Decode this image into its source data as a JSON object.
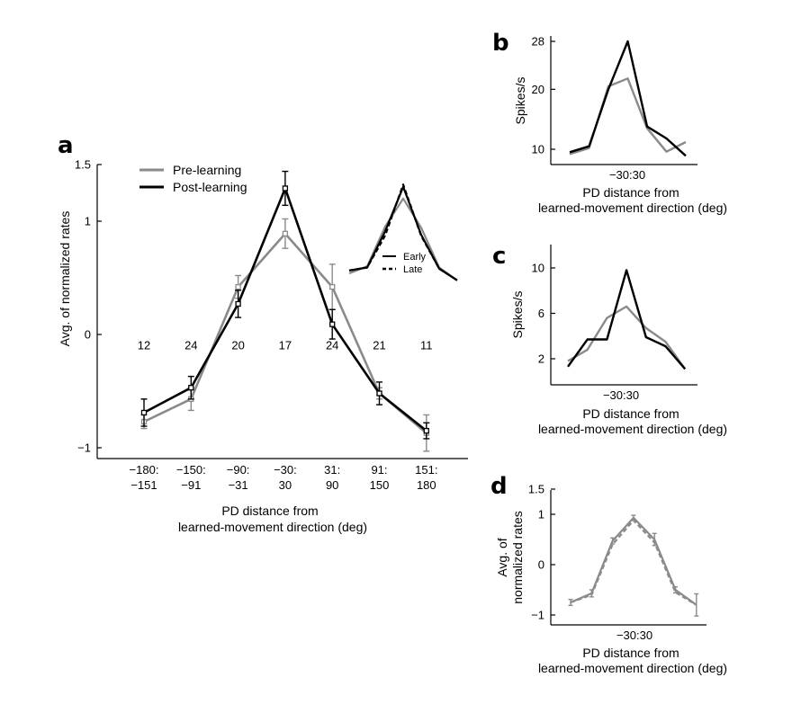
{
  "panel_labels": {
    "a": "a",
    "b": "b",
    "c": "c",
    "d": "d"
  },
  "colors": {
    "pre": "#8a8a8a",
    "post": "#000000",
    "axis": "#000000"
  },
  "chart_data": [
    {
      "panel": "a",
      "type": "line",
      "ylabel": "Avg. of normalized rates",
      "xlabel_line1": "PD distance from",
      "xlabel_line2": "learned-movement direction (deg)",
      "ylim": [
        -1.05,
        1.5
      ],
      "yticks": [
        {
          "v": 1.5,
          "label": "1.5"
        },
        {
          "v": 1,
          "label": "1"
        },
        {
          "v": 0,
          "label": "0"
        },
        {
          "v": -1,
          "label": "−1"
        }
      ],
      "categories": [
        {
          "line1": "−180:",
          "line2": "−151"
        },
        {
          "line1": "−150:",
          "line2": "−91"
        },
        {
          "line1": "−90:",
          "line2": "−31"
        },
        {
          "line1": "−30:",
          "line2": "30"
        },
        {
          "line1": "31:",
          "line2": "90"
        },
        {
          "line1": "91:",
          "line2": "150"
        },
        {
          "line1": "151:",
          "line2": "180"
        }
      ],
      "counts": [
        "12",
        "24",
        "20",
        "17",
        "24",
        "21",
        "11"
      ],
      "counts_y": -0.1,
      "legend": {
        "pre": "Pre-learning",
        "post": "Post-learning"
      },
      "series": [
        {
          "name": "Pre-learning",
          "key": "pre",
          "values": [
            -0.77,
            -0.57,
            0.42,
            0.89,
            0.42,
            -0.52,
            -0.87
          ],
          "errors": [
            0.06,
            0.1,
            0.1,
            0.13,
            0.2,
            0.05,
            0.16
          ]
        },
        {
          "name": "Post-learning",
          "key": "post",
          "values": [
            -0.69,
            -0.47,
            0.27,
            1.29,
            0.09,
            -0.52,
            -0.85
          ],
          "errors": [
            0.12,
            0.1,
            0.12,
            0.15,
            0.13,
            0.1,
            0.07
          ]
        }
      ],
      "inset": {
        "legend": {
          "early": "Early",
          "late": "Late"
        },
        "series": [
          {
            "key": "pre",
            "style": "solid",
            "values": [
              -0.6,
              -0.48,
              0.2,
              0.68,
              0.18,
              -0.5,
              -0.72
            ]
          },
          {
            "key": "post",
            "style": "solid",
            "values": [
              -0.55,
              -0.5,
              0.12,
              0.88,
              0.06,
              -0.52,
              -0.72
            ]
          },
          {
            "key": "post",
            "style": "dashed",
            "values": [
              -0.55,
              -0.5,
              0.05,
              0.92,
              0.04,
              -0.52,
              -0.72
            ]
          }
        ]
      }
    },
    {
      "panel": "b",
      "type": "line",
      "ylabel": "Spikes/s",
      "xlabel_line1": "PD distance from",
      "xlabel_line2": "learned-movement direction (deg)",
      "xtick_label": "−30:30",
      "ylim": [
        8,
        28.5
      ],
      "yticks": [
        {
          "v": 28,
          "label": "28"
        },
        {
          "v": 20,
          "label": "20"
        },
        {
          "v": 10,
          "label": "10"
        }
      ],
      "x": [
        -180,
        -150,
        -90,
        -30,
        30,
        90,
        150
      ],
      "series": [
        {
          "name": "Pre-learning",
          "key": "pre",
          "values": [
            9.2,
            10.2,
            20.5,
            21.8,
            13.5,
            9.6,
            11.2
          ]
        },
        {
          "name": "Post-learning",
          "key": "post",
          "values": [
            9.5,
            10.5,
            20,
            28,
            13.8,
            11.8,
            8.9
          ]
        }
      ]
    },
    {
      "panel": "c",
      "type": "line",
      "ylabel": "Spikes/s",
      "xlabel_line1": "PD distance from",
      "xlabel_line2": "learned-movement direction (deg)",
      "xtick_label": "−30:30",
      "ylim": [
        0.5,
        11.5
      ],
      "yticks": [
        {
          "v": 10,
          "label": "10"
        },
        {
          "v": 6,
          "label": "6"
        },
        {
          "v": 2,
          "label": "2"
        }
      ],
      "x": [
        -180,
        -150,
        -90,
        -30,
        30,
        90,
        150
      ],
      "series": [
        {
          "name": "Pre-learning",
          "key": "pre",
          "values": [
            1.8,
            2.8,
            5.6,
            6.6,
            4.7,
            3.5,
            1.1
          ]
        },
        {
          "name": "Post-learning",
          "key": "post",
          "values": [
            1.3,
            3.7,
            3.7,
            9.8,
            3.9,
            3.1,
            1.1
          ]
        }
      ]
    },
    {
      "panel": "d",
      "type": "line",
      "ylabel_line1": "Avg. of",
      "ylabel_line2": "normalized rates",
      "xlabel_line1": "PD distance from",
      "xlabel_line2": "learned-movement direction (deg)",
      "xtick_label": "−30:30",
      "ylim": [
        -1.15,
        1.5
      ],
      "yticks": [
        {
          "v": 1.5,
          "label": "1.5"
        },
        {
          "v": 1,
          "label": "1"
        },
        {
          "v": 0,
          "label": "0"
        },
        {
          "v": -1,
          "label": "−1"
        }
      ],
      "x": [
        -180,
        -150,
        -90,
        -30,
        30,
        90,
        150
      ],
      "series": [
        {
          "key": "pre",
          "style": "solid",
          "values": [
            -0.75,
            -0.57,
            0.47,
            0.93,
            0.5,
            -0.5,
            -0.8
          ],
          "errors": [
            0.06,
            0.07,
            0.06,
            0.05,
            0.12,
            0.06,
            0.22
          ]
        },
        {
          "key": "pre",
          "style": "dashed",
          "values": [
            -0.75,
            -0.6,
            0.4,
            0.88,
            0.44,
            -0.55,
            -0.8
          ]
        }
      ]
    }
  ]
}
